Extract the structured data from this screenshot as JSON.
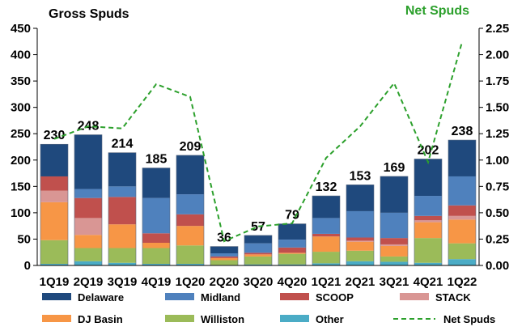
{
  "chart_data": {
    "type": "bar",
    "stacked": true,
    "title_left": "Gross Spuds",
    "title_right": "Net Spuds",
    "categories": [
      "1Q19",
      "2Q19",
      "3Q19",
      "4Q19",
      "1Q20",
      "2Q20",
      "3Q20",
      "4Q20",
      "1Q21",
      "2Q21",
      "3Q21",
      "4Q21",
      "1Q22"
    ],
    "ylim": [
      0,
      450
    ],
    "yticks": [
      "0",
      "50",
      "100",
      "150",
      "200",
      "250",
      "300",
      "350",
      "400",
      "450"
    ],
    "y2lim": [
      0,
      2.25
    ],
    "y2ticks": [
      "0.00",
      "0.25",
      "0.50",
      "0.75",
      "1.00",
      "1.25",
      "1.50",
      "1.75",
      "2.00",
      "2.25"
    ],
    "totals": [
      "230",
      "248",
      "214",
      "185",
      "209",
      "36",
      "57",
      "79",
      "132",
      "153",
      "169",
      "202",
      "238"
    ],
    "series": [
      {
        "name": "Other",
        "color": "#4bacc6",
        "values": [
          3,
          8,
          5,
          3,
          3,
          1,
          2,
          2,
          4,
          8,
          7,
          5,
          12
        ]
      },
      {
        "name": "Williston",
        "color": "#9bbb59",
        "values": [
          45,
          25,
          28,
          30,
          35,
          9,
          15,
          20,
          22,
          20,
          10,
          47,
          30
        ]
      },
      {
        "name": "DJ Basin",
        "color": "#f79646",
        "values": [
          72,
          25,
          45,
          10,
          37,
          4,
          4,
          2,
          29,
          17,
          20,
          30,
          45
        ]
      },
      {
        "name": "STACK",
        "color": "#d99694",
        "values": [
          22,
          32,
          0,
          0,
          0,
          0,
          0,
          0,
          0,
          2,
          3,
          4,
          7
        ]
      },
      {
        "name": "SCOOP",
        "color": "#c0504d",
        "values": [
          27,
          38,
          52,
          18,
          22,
          3,
          3,
          10,
          5,
          6,
          12,
          8,
          20
        ]
      },
      {
        "name": "Midland",
        "color": "#4f81bd",
        "values": [
          0,
          17,
          20,
          67,
          38,
          6,
          18,
          15,
          30,
          50,
          48,
          38,
          55
        ]
      },
      {
        "name": "Delaware",
        "color": "#1f497d",
        "values": [
          61,
          103,
          64,
          57,
          74,
          13,
          15,
          30,
          42,
          50,
          69,
          70,
          69
        ]
      }
    ],
    "line": {
      "name": "Net Spuds",
      "color": "#2ca02c",
      "values": [
        1.2,
        1.32,
        1.3,
        1.72,
        1.6,
        0.23,
        0.37,
        0.4,
        1.02,
        1.32,
        1.73,
        0.98,
        2.12
      ]
    },
    "legend": [
      {
        "name": "Delaware",
        "color": "#1f497d",
        "kind": "box"
      },
      {
        "name": "Midland",
        "color": "#4f81bd",
        "kind": "box"
      },
      {
        "name": "SCOOP",
        "color": "#c0504d",
        "kind": "box"
      },
      {
        "name": "STACK",
        "color": "#d99694",
        "kind": "box"
      },
      {
        "name": "DJ Basin",
        "color": "#f79646",
        "kind": "box"
      },
      {
        "name": "Williston",
        "color": "#9bbb59",
        "kind": "box"
      },
      {
        "name": "Other",
        "color": "#4bacc6",
        "kind": "box"
      },
      {
        "name": "Net Spuds",
        "color": "#2ca02c",
        "kind": "line"
      }
    ]
  }
}
